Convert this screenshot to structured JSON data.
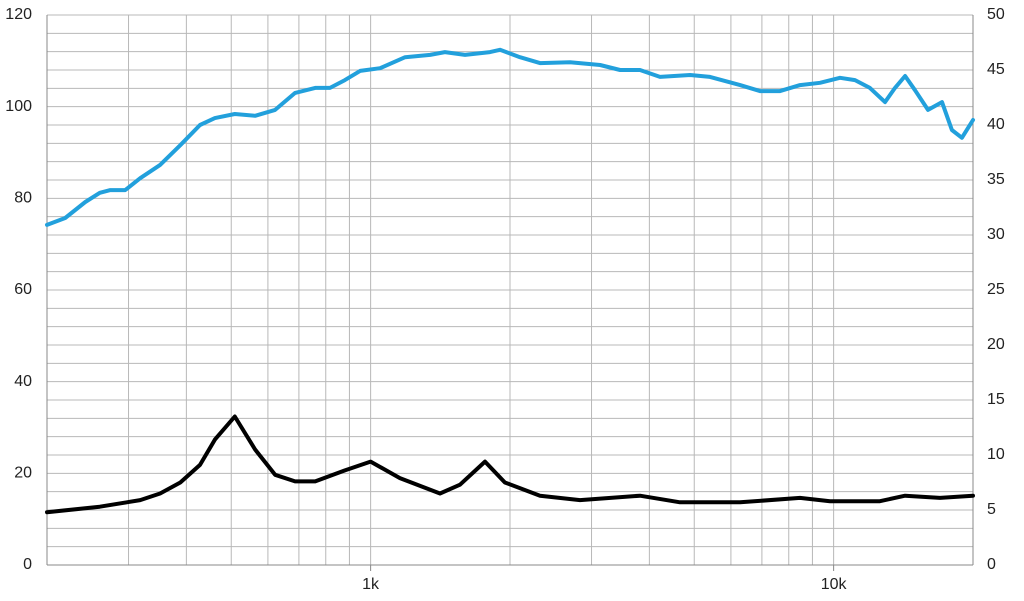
{
  "chart_data": {
    "type": "line",
    "xscale": "log",
    "xlim": [
      200,
      20000
    ],
    "xticks": [
      {
        "value": 1000,
        "label": "1k"
      },
      {
        "value": 10000,
        "label": "10k"
      }
    ],
    "xgrid": [
      200,
      300,
      400,
      500,
      600,
      700,
      800,
      900,
      1000,
      2000,
      3000,
      4000,
      5000,
      6000,
      7000,
      8000,
      9000,
      10000,
      20000
    ],
    "ylim": [
      0,
      120
    ],
    "yticks": [
      0,
      20,
      40,
      60,
      80,
      100,
      120
    ],
    "ygrid": [
      0,
      4,
      8,
      12,
      16,
      20,
      24,
      28,
      32,
      36,
      40,
      44,
      48,
      52,
      56,
      60,
      64,
      68,
      72,
      76,
      80,
      84,
      88,
      92,
      96,
      100,
      104,
      108,
      112,
      116,
      120
    ],
    "y2lim": [
      0,
      50
    ],
    "y2ticks": [
      0,
      5,
      10,
      15,
      20,
      25,
      30,
      35,
      40,
      45,
      50
    ],
    "series": [
      {
        "color": "#22a0dc",
        "x": [
          200,
          219,
          242,
          260,
          274,
          295,
          318,
          351,
          388,
          428,
          461,
          509,
          563,
          622,
          687,
          759,
          817,
          880,
          949,
          1048,
          1187,
          1344,
          1447,
          1599,
          1811,
          1903,
          2102,
          2322,
          2696,
          3130,
          3458,
          3818,
          4217,
          4897,
          5408,
          6280,
          6934,
          7660,
          8460,
          9343,
          10320,
          11120,
          11980,
          12910,
          13570,
          14270,
          14990,
          15990,
          17140,
          18010,
          18930,
          20000
        ],
        "values": [
          74.2,
          75.7,
          79.2,
          81.2,
          81.8,
          81.8,
          84.4,
          87.3,
          91.6,
          96,
          97.5,
          98.4,
          98,
          99.3,
          103,
          104.1,
          104.1,
          105.8,
          107.8,
          108.4,
          110.8,
          111.3,
          111.9,
          111.3,
          111.9,
          112.4,
          110.8,
          109.5,
          109.7,
          109.1,
          108,
          108,
          106.5,
          106.9,
          106.5,
          104.7,
          103.4,
          103.4,
          104.7,
          105.2,
          106.3,
          105.8,
          104.1,
          101,
          104.1,
          106.7,
          103.6,
          99.3,
          101,
          94.9,
          93.2,
          97.1
        ]
      },
      {
        "color": "#000000",
        "axis": "y2",
        "x": [
          200,
          260,
          318,
          351,
          388,
          428,
          461,
          509,
          563,
          622,
          687,
          759,
          880,
          1000,
          1157,
          1412,
          1560,
          1766,
          1950,
          2322,
          2833,
          3818,
          4658,
          6280,
          8460,
          9820,
          12590,
          14270,
          16970,
          20000
        ],
        "values": [
          4.8,
          5.3,
          5.9,
          6.5,
          7.5,
          9.1,
          11.4,
          13.5,
          10.5,
          8.2,
          7.6,
          7.6,
          8.6,
          9.4,
          7.9,
          6.5,
          7.3,
          9.4,
          7.5,
          6.3,
          5.9,
          6.3,
          5.7,
          5.7,
          6.1,
          5.8,
          5.8,
          6.3,
          6.1,
          6.3
        ]
      }
    ]
  }
}
